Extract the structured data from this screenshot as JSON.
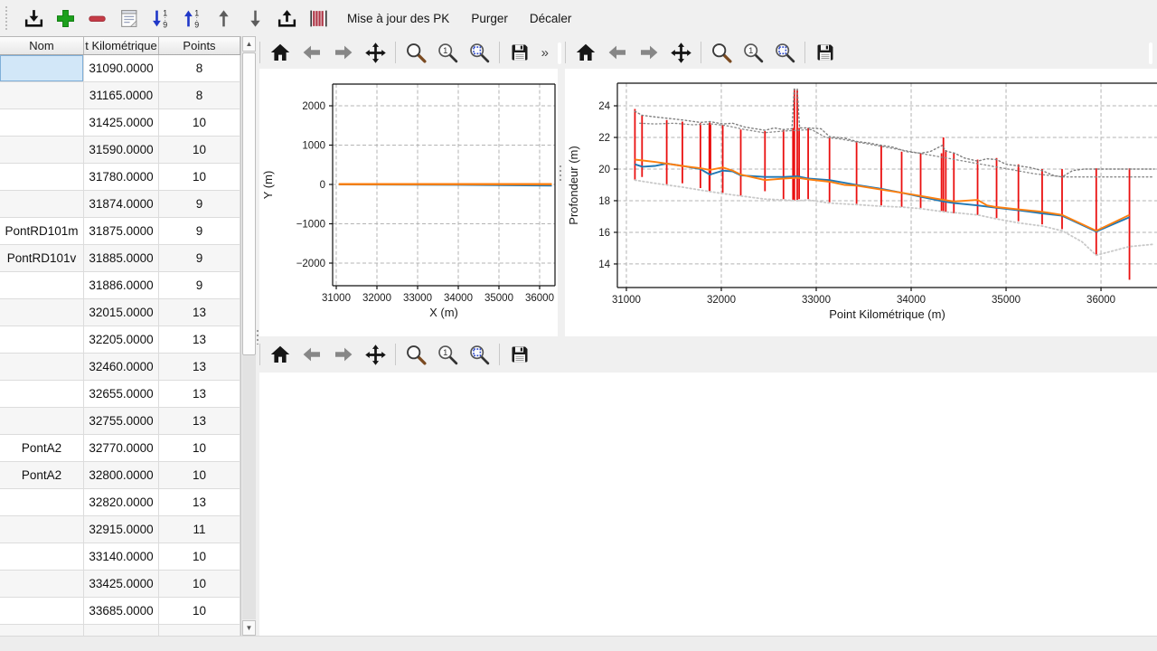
{
  "toolbar": {
    "icons": [
      "import",
      "add-row",
      "remove-row",
      "notes",
      "sort-ascending",
      "sort-descending",
      "move-up",
      "move-down",
      "export",
      "profiles"
    ],
    "text_buttons": [
      "Mise à jour des PK",
      "Purger",
      "Décaler"
    ]
  },
  "nav_toolbar": {
    "icons": [
      "home",
      "back",
      "forward",
      "pan",
      "zoom",
      "zoom-one",
      "zoom-region",
      "save"
    ],
    "overflow_label": "»"
  },
  "table": {
    "columns": [
      "Nom",
      "t Kilométrique",
      "Points"
    ],
    "selected_cell": {
      "row": 0,
      "col": 0
    },
    "rows": [
      [
        "",
        "31090.0000",
        "8"
      ],
      [
        "",
        "31165.0000",
        "8"
      ],
      [
        "",
        "31425.0000",
        "10"
      ],
      [
        "",
        "31590.0000",
        "10"
      ],
      [
        "",
        "31780.0000",
        "10"
      ],
      [
        "",
        "31874.0000",
        "9"
      ],
      [
        "PontRD101m",
        "31875.0000",
        "9"
      ],
      [
        "PontRD101v",
        "31885.0000",
        "9"
      ],
      [
        "",
        "31886.0000",
        "9"
      ],
      [
        "",
        "32015.0000",
        "13"
      ],
      [
        "",
        "32205.0000",
        "13"
      ],
      [
        "",
        "32460.0000",
        "13"
      ],
      [
        "",
        "32655.0000",
        "13"
      ],
      [
        "",
        "32755.0000",
        "13"
      ],
      [
        "PontA2",
        "32770.0000",
        "10"
      ],
      [
        "PontA2",
        "32800.0000",
        "10"
      ],
      [
        "",
        "32820.0000",
        "13"
      ],
      [
        "",
        "32915.0000",
        "11"
      ],
      [
        "",
        "33140.0000",
        "10"
      ],
      [
        "",
        "33425.0000",
        "10"
      ],
      [
        "",
        "33685.0000",
        "10"
      ],
      [
        "",
        "",
        ""
      ]
    ]
  },
  "colors": {
    "blue_line": "#1f77b4",
    "orange_line": "#ff7f0e",
    "red_bars": "#ea1010",
    "grid": "#b3b3b3",
    "envelope_dark": "#7f7f7f",
    "envelope_light": "#c9c9c9",
    "accent_selection": "#d2e7f8"
  },
  "chart_data": [
    {
      "type": "line",
      "title": "",
      "xlabel": "X (m)",
      "ylabel": "Y (m)",
      "xlim": [
        30911,
        36378
      ],
      "ylim": [
        -2575,
        2552
      ],
      "xticks": [
        31000,
        32000,
        33000,
        34000,
        35000,
        36000
      ],
      "yticks": [
        -2000,
        -1000,
        0,
        1000,
        2000
      ],
      "grid": true,
      "series": [
        {
          "name": "trace-blue",
          "color": "#1f77b4",
          "width": 2,
          "x": [
            31060,
            34000,
            36300
          ],
          "y": [
            0,
            -10,
            -28
          ]
        },
        {
          "name": "trace-orange",
          "color": "#ff7f0e",
          "width": 2.4,
          "x": [
            31060,
            36300
          ],
          "y": [
            8,
            8
          ]
        }
      ]
    },
    {
      "type": "line",
      "title": "",
      "xlabel": "Point Kilométrique (m)",
      "ylabel": "Profondeur (m)",
      "xlim": [
        30905,
        36590
      ],
      "ylim": [
        12.51,
        25.43
      ],
      "xticks": [
        31000,
        32000,
        33000,
        34000,
        35000,
        36000
      ],
      "yticks": [
        14,
        16,
        18,
        20,
        22,
        24
      ],
      "grid": true,
      "vlines": {
        "name": "sondages-verticaux",
        "color": "#ea1010",
        "width": 1.8,
        "data": [
          [
            31090,
            19.3,
            23.8
          ],
          [
            31165,
            19.5,
            23.4
          ],
          [
            31425,
            19.0,
            23.1
          ],
          [
            31590,
            19.1,
            23.0
          ],
          [
            31780,
            18.8,
            22.9
          ],
          [
            31874,
            18.6,
            22.9
          ],
          [
            31879,
            18.6,
            22.95
          ],
          [
            31886,
            19.6,
            22.8
          ],
          [
            32015,
            18.5,
            22.8
          ],
          [
            32205,
            18.3,
            22.5
          ],
          [
            32460,
            18.6,
            22.4
          ],
          [
            32655,
            18.1,
            22.5
          ],
          [
            32755,
            18.05,
            22.6
          ],
          [
            32770,
            18.0,
            25.05
          ],
          [
            32800,
            18.05,
            25.0
          ],
          [
            32820,
            18.1,
            22.6
          ],
          [
            32915,
            18.1,
            22.6
          ],
          [
            33140,
            17.9,
            22.0
          ],
          [
            33425,
            17.8,
            21.7
          ],
          [
            33685,
            17.7,
            21.5
          ],
          [
            33900,
            17.6,
            21.1
          ],
          [
            34100,
            17.5,
            21.0
          ],
          [
            34320,
            17.35,
            21.0
          ],
          [
            34340,
            17.3,
            22.0
          ],
          [
            34365,
            17.3,
            21.2
          ],
          [
            34450,
            17.2,
            21.0
          ],
          [
            34700,
            17.1,
            20.6
          ],
          [
            34900,
            16.9,
            20.7
          ],
          [
            35130,
            16.7,
            20.3
          ],
          [
            35380,
            16.5,
            20.0
          ],
          [
            35590,
            16.2,
            20.0
          ],
          [
            35950,
            14.6,
            20.05
          ],
          [
            36300,
            13.0,
            20.05
          ]
        ]
      },
      "series": [
        {
          "name": "enveloppe-sup",
          "color": "#7f7f7f",
          "width": 1.4,
          "dash": "dotted",
          "x": [
            31090,
            31165,
            31300,
            31450,
            31600,
            31780,
            31880,
            32015,
            32120,
            32250,
            32460,
            32560,
            32655,
            32745,
            32768,
            32800,
            32825,
            32915,
            33050,
            33140,
            33300,
            33425,
            33550,
            33685,
            33800,
            33950,
            34100,
            34200,
            34330,
            34360,
            34460,
            34560,
            34700,
            34800,
            34900,
            35000,
            35130,
            35250,
            35380,
            35500,
            35590,
            35700,
            35820,
            35950,
            36300,
            36560
          ],
          "y": [
            23.65,
            23.4,
            23.3,
            23.2,
            23.1,
            22.95,
            23.0,
            22.85,
            22.9,
            22.65,
            22.45,
            22.6,
            22.5,
            22.55,
            25.05,
            25.05,
            22.6,
            22.6,
            22.55,
            22.05,
            21.95,
            21.75,
            21.65,
            21.5,
            21.4,
            21.1,
            21.0,
            21.1,
            21.5,
            21.15,
            21.0,
            20.7,
            20.5,
            20.65,
            20.6,
            20.3,
            20.2,
            20.1,
            19.9,
            19.6,
            19.5,
            19.9,
            20.0,
            20.0,
            20.0,
            20.0
          ]
        },
        {
          "name": "enveloppe-sup-2",
          "color": "#8a8a8a",
          "width": 1.3,
          "dash": "dotted",
          "x": [
            31140,
            31300,
            31500,
            31700,
            31900,
            32050,
            32250,
            32450,
            32650,
            32800,
            32950,
            33100,
            33250,
            35300,
            35600,
            35950,
            36300,
            36560
          ],
          "y": [
            22.9,
            22.85,
            22.9,
            22.8,
            22.85,
            22.75,
            22.5,
            22.3,
            22.4,
            22.45,
            22.5,
            22.0,
            21.9,
            19.7,
            19.5,
            19.5,
            19.5,
            19.5
          ]
        },
        {
          "name": "enveloppe-inf",
          "color": "#c9c9c9",
          "width": 1.8,
          "dash": "dotted",
          "x": [
            31090,
            31300,
            31600,
            31800,
            32015,
            32205,
            32460,
            32655,
            32800,
            32915,
            33140,
            33425,
            33685,
            33900,
            34100,
            34340,
            34450,
            34700,
            34900,
            35130,
            35380,
            35590,
            35800,
            35950,
            36300,
            36560
          ],
          "y": [
            19.3,
            19.1,
            18.85,
            18.65,
            18.45,
            18.3,
            18.1,
            18.05,
            18.0,
            18.05,
            17.85,
            17.75,
            17.65,
            17.6,
            17.5,
            17.3,
            17.25,
            17.1,
            16.85,
            16.6,
            16.4,
            16.1,
            15.4,
            14.55,
            15.1,
            15.25
          ]
        },
        {
          "name": "profondeur-bleu",
          "color": "#1f77b4",
          "width": 1.9,
          "x": [
            31090,
            31170,
            31300,
            31425,
            31590,
            31780,
            31880,
            32015,
            32120,
            32205,
            32460,
            32655,
            32800,
            32915,
            33140,
            33425,
            33685,
            33900,
            34100,
            34340,
            34450,
            34700,
            34900,
            35130,
            35380,
            35590,
            35950,
            36300
          ],
          "y": [
            20.3,
            20.15,
            20.2,
            20.35,
            20.2,
            20.0,
            19.65,
            19.9,
            19.85,
            19.6,
            19.5,
            19.5,
            19.55,
            19.4,
            19.3,
            19.0,
            18.75,
            18.5,
            18.25,
            17.95,
            17.85,
            17.7,
            17.55,
            17.4,
            17.2,
            17.05,
            16.05,
            16.95
          ]
        },
        {
          "name": "profondeur-orange",
          "color": "#ff7f0e",
          "width": 1.9,
          "x": [
            31090,
            31300,
            31425,
            31590,
            31780,
            31880,
            32015,
            32120,
            32205,
            32460,
            32655,
            32800,
            32915,
            33140,
            33300,
            33425,
            33685,
            33900,
            34100,
            34340,
            34450,
            34700,
            34800,
            34900,
            35130,
            35380,
            35590,
            35950,
            36300
          ],
          "y": [
            20.6,
            20.45,
            20.35,
            20.2,
            20.05,
            19.95,
            20.1,
            19.9,
            19.65,
            19.3,
            19.4,
            19.45,
            19.35,
            19.2,
            19.0,
            18.95,
            18.7,
            18.5,
            18.3,
            18.05,
            17.95,
            18.05,
            17.7,
            17.6,
            17.45,
            17.3,
            17.1,
            16.1,
            17.1
          ]
        }
      ]
    }
  ]
}
